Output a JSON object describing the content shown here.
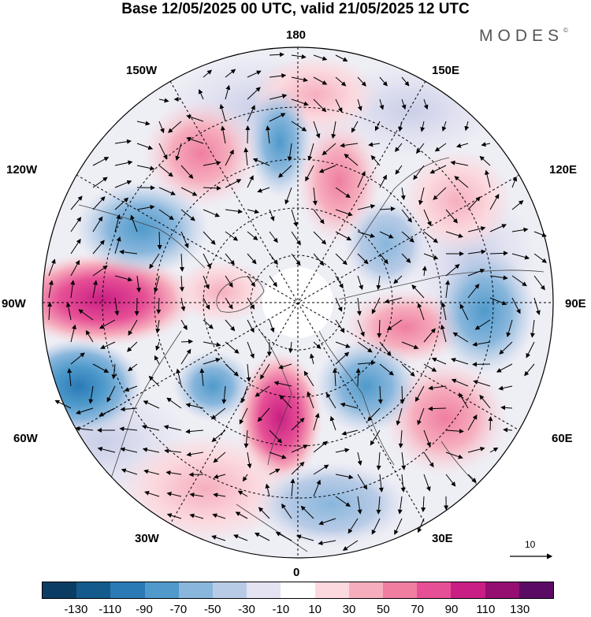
{
  "title": "Base 12/05/2025 00 UTC, valid 21/05/2025 12 UTC",
  "brand": "MODES",
  "brand_mark": "©",
  "map": {
    "projection": "north polar stereographic",
    "longitude_labels": {
      "lon_180": "180",
      "lon_150w": "150W",
      "lon_150e": "150E",
      "lon_120w": "120W",
      "lon_120e": "120E",
      "lon_90w": "90W",
      "lon_90e": "90E",
      "lon_60w": "60W",
      "lon_60e": "60E",
      "lon_30w": "30W",
      "lon_30e": "30E",
      "lon_0": "0"
    },
    "reference_vector": "10"
  },
  "colorbar": {
    "colors": [
      "#0b3c63",
      "#145a8c",
      "#2a7ab6",
      "#4f9acb",
      "#88b6dc",
      "#b8cbe6",
      "#e3e3f1",
      "#ffffff",
      "#fbd9de",
      "#f6aebd",
      "#ef7ea0",
      "#e64f95",
      "#c91f84",
      "#950f73",
      "#5c0b65"
    ],
    "tick_labels": [
      "-130",
      "-110",
      "-90",
      "-70",
      "-50",
      "-30",
      "-10",
      "10",
      "30",
      "50",
      "70",
      "90",
      "110",
      "130"
    ]
  }
}
